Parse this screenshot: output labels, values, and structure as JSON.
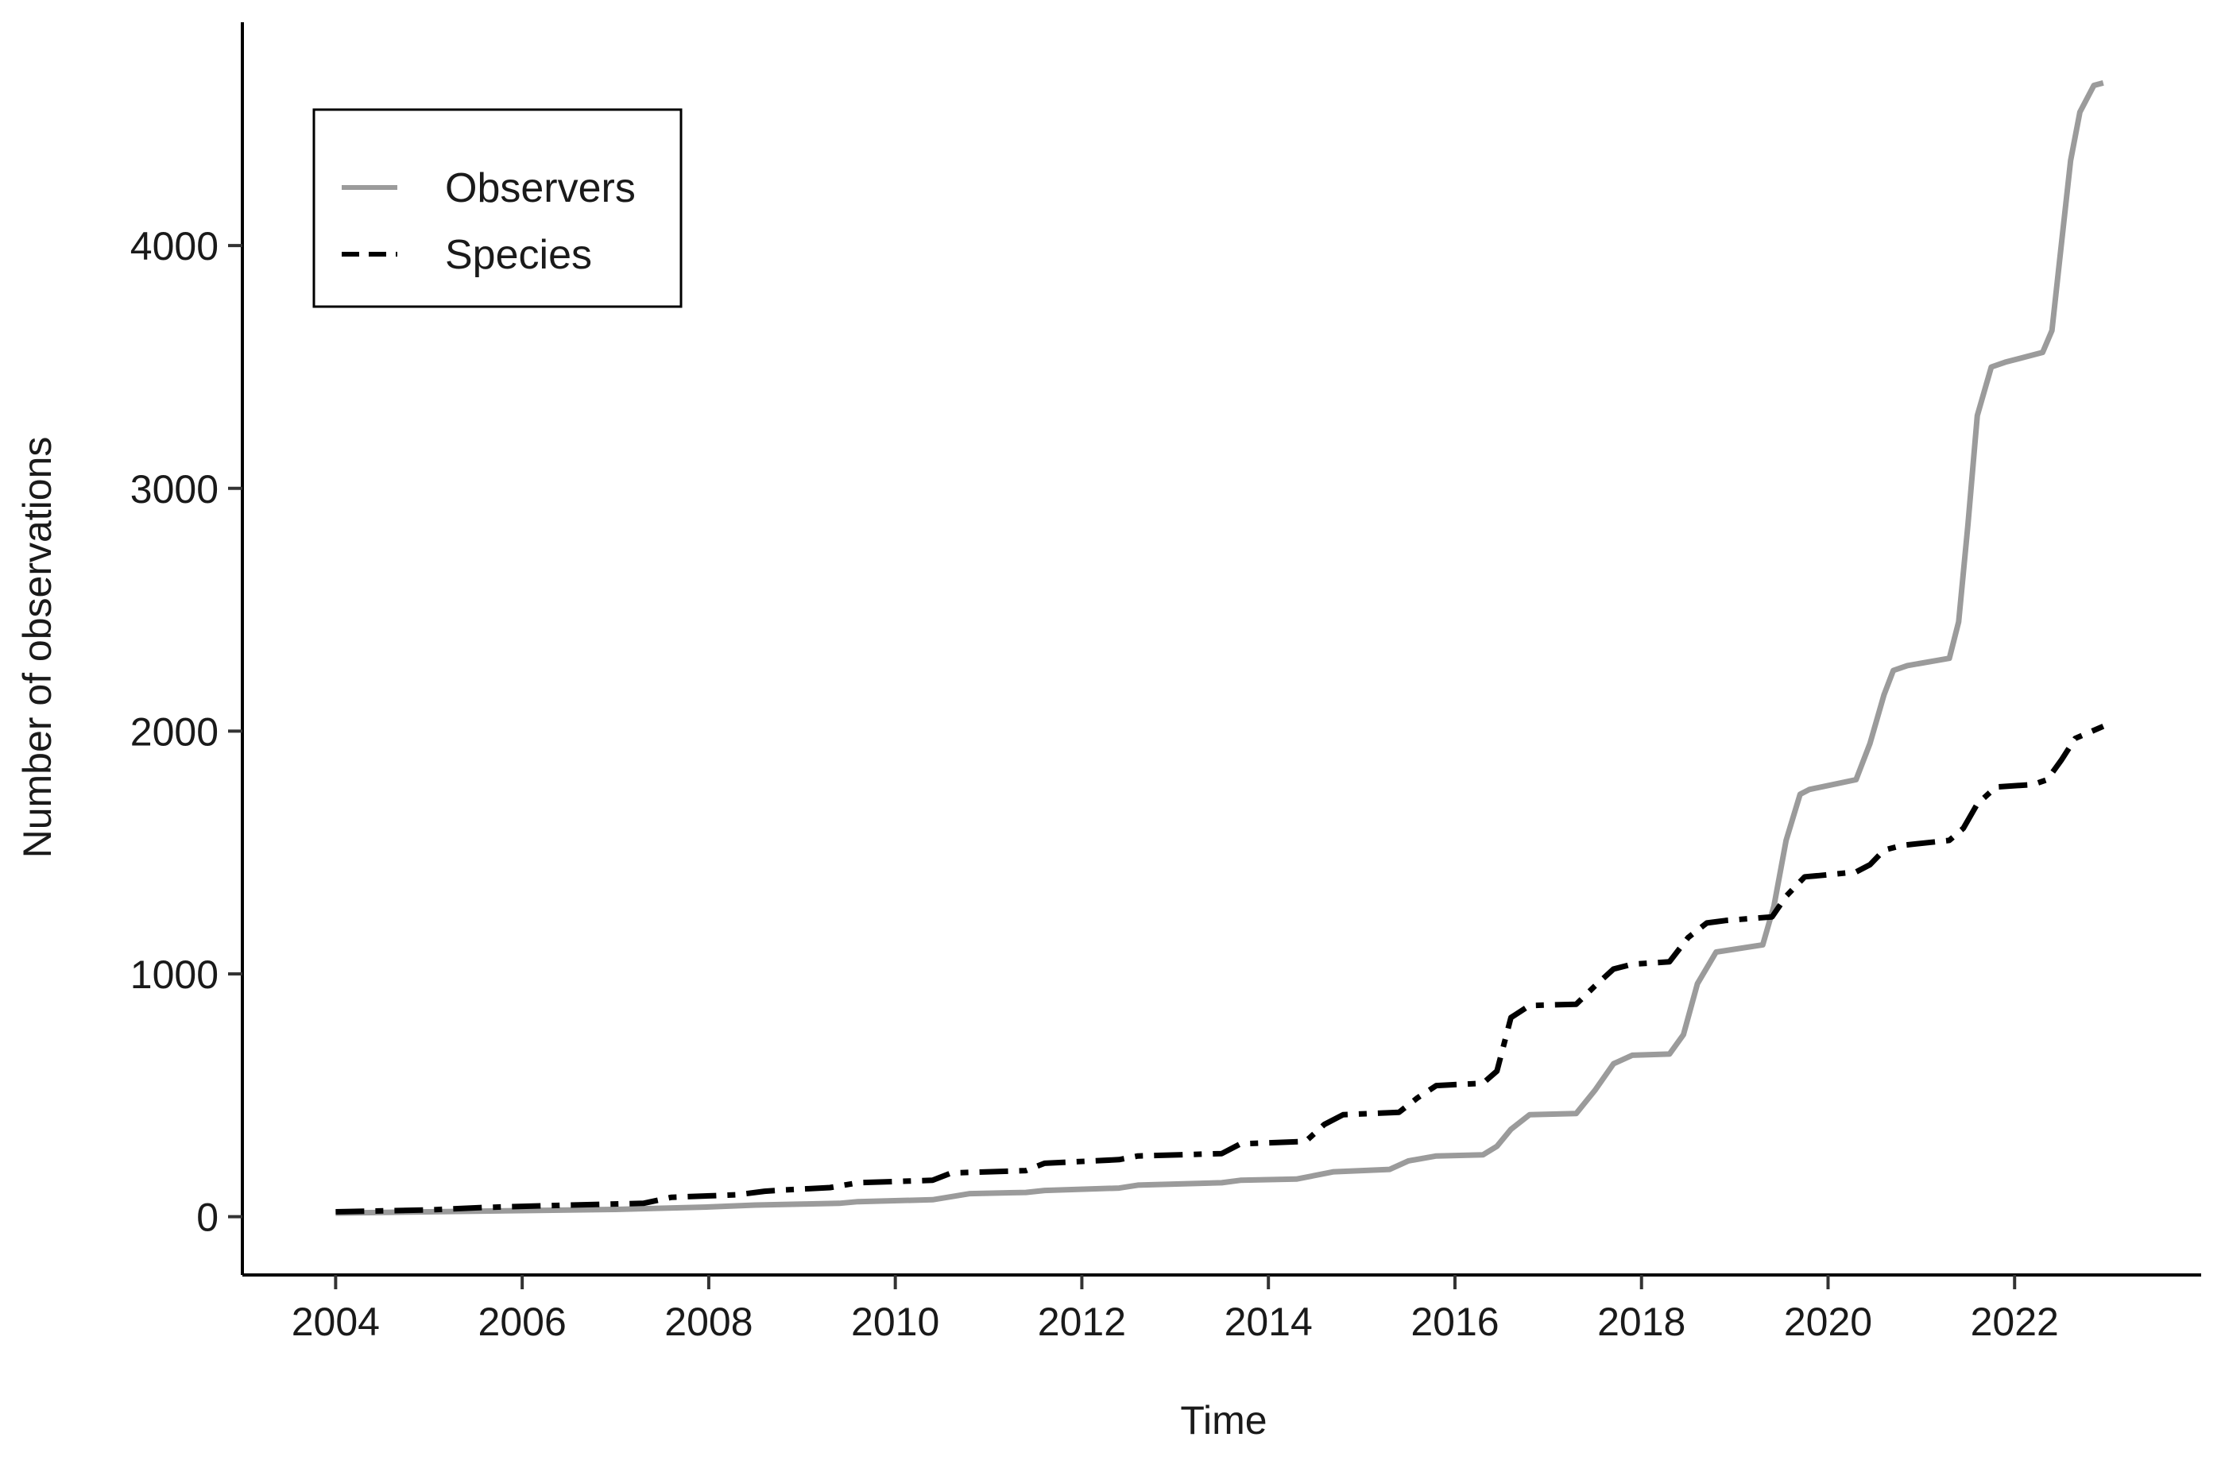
{
  "chart_data": {
    "type": "line",
    "title": "",
    "xlabel": "Time",
    "ylabel": "Number of observations",
    "xlim": [
      2003.0,
      2024.0
    ],
    "ylim": [
      -240,
      4920
    ],
    "xticks": [
      2004,
      2006,
      2008,
      2010,
      2012,
      2014,
      2016,
      2018,
      2020,
      2022
    ],
    "yticks": [
      0,
      1000,
      2000,
      3000,
      4000
    ],
    "grid": false,
    "legend_position": "top-left",
    "series": [
      {
        "name": "Observers",
        "color": "#9b9b9b",
        "dash": "solid",
        "x": [
          2004.0,
          2005.0,
          2006.0,
          2007.0,
          2008.0,
          2008.5,
          2009.0,
          2009.4,
          2009.6,
          2010.4,
          2010.8,
          2011.4,
          2011.6,
          2012.4,
          2012.6,
          2013.5,
          2013.7,
          2014.3,
          2014.7,
          2015.3,
          2015.5,
          2015.8,
          2016.3,
          2016.45,
          2016.6,
          2016.8,
          2017.3,
          2017.5,
          2017.7,
          2017.9,
          2018.3,
          2018.45,
          2018.6,
          2018.8,
          2019.3,
          2019.42,
          2019.55,
          2019.7,
          2019.8,
          2020.3,
          2020.45,
          2020.6,
          2020.7,
          2020.85,
          2021.3,
          2021.4,
          2021.5,
          2021.6,
          2021.75,
          2021.9,
          2022.3,
          2022.4,
          2022.5,
          2022.6,
          2022.7,
          2022.85,
          2022.95
        ],
        "values": [
          15,
          20,
          25,
          30,
          40,
          48,
          52,
          55,
          62,
          70,
          95,
          100,
          108,
          118,
          130,
          140,
          150,
          155,
          185,
          195,
          230,
          250,
          255,
          290,
          360,
          420,
          425,
          520,
          630,
          665,
          670,
          750,
          960,
          1090,
          1120,
          1280,
          1550,
          1740,
          1760,
          1800,
          1950,
          2150,
          2250,
          2270,
          2300,
          2450,
          2850,
          3300,
          3500,
          3520,
          3560,
          3650,
          4000,
          4350,
          4550,
          4660,
          4670
        ]
      },
      {
        "name": "Species",
        "color": "#000000",
        "dash": "dashdot",
        "x": [
          2004.0,
          2005.0,
          2005.6,
          2006.5,
          2007.3,
          2007.6,
          2008.3,
          2008.6,
          2008.8,
          2009.3,
          2009.6,
          2010.4,
          2010.6,
          2011.4,
          2011.6,
          2012.4,
          2012.6,
          2013.5,
          2013.7,
          2014.4,
          2014.6,
          2014.8,
          2015.4,
          2015.6,
          2015.8,
          2016.3,
          2016.45,
          2016.6,
          2016.8,
          2017.3,
          2017.5,
          2017.7,
          2017.9,
          2018.3,
          2018.5,
          2018.7,
          2018.9,
          2019.4,
          2019.55,
          2019.75,
          2019.9,
          2020.3,
          2020.45,
          2020.6,
          2020.8,
          2021.3,
          2021.45,
          2021.6,
          2021.8,
          2022.2,
          2022.35,
          2022.5,
          2022.65,
          2022.95
        ],
        "values": [
          20,
          28,
          38,
          48,
          55,
          80,
          90,
          105,
          110,
          120,
          140,
          150,
          180,
          190,
          220,
          235,
          250,
          260,
          300,
          310,
          380,
          420,
          430,
          490,
          540,
          550,
          600,
          820,
          870,
          875,
          950,
          1020,
          1040,
          1050,
          1150,
          1210,
          1220,
          1235,
          1320,
          1400,
          1405,
          1420,
          1450,
          1510,
          1530,
          1550,
          1600,
          1700,
          1770,
          1780,
          1800,
          1880,
          1970,
          2020
        ]
      }
    ]
  }
}
